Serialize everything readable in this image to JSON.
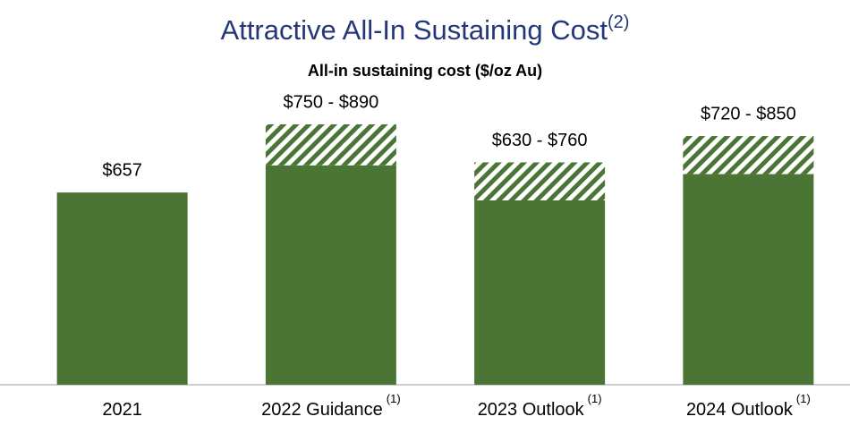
{
  "chart_data": {
    "type": "range_bar",
    "title": "Attractive All-In Sustaining Cost",
    "title_note": "(2)",
    "subtitle": "All-in sustaining cost ($/oz Au)",
    "categories": [
      "2021",
      "2022 Guidance",
      "2023 Outlook",
      "2024 Outlook"
    ],
    "category_notes": [
      null,
      "(1)",
      "(1)",
      "(1)"
    ],
    "values": [
      657,
      750,
      630,
      720
    ],
    "range_high": [
      null,
      890,
      760,
      850
    ],
    "value_labels": [
      "$657",
      "$750 - $890",
      "$630 - $760",
      "$720 - $850"
    ],
    "color": "#4b7535",
    "ylim": [
      0,
      1000
    ]
  }
}
